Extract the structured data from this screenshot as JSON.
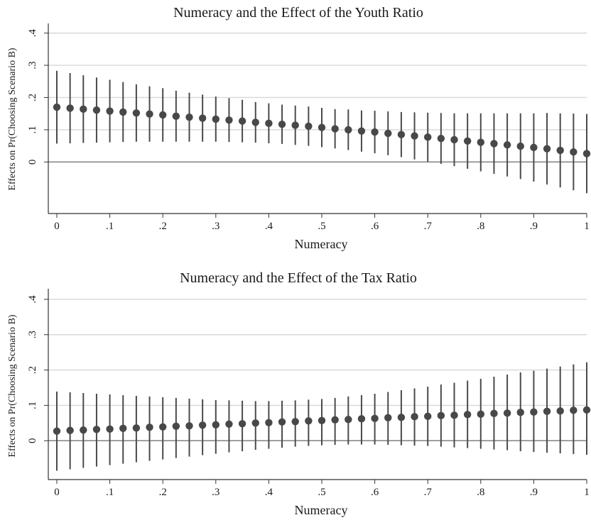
{
  "chart_data": [
    {
      "type": "scatter",
      "title": "Numeracy and the Effect of the Youth Ratio",
      "xlabel": "Numeracy",
      "ylabel": "Effects on Pr(Choosing Scenario B)",
      "xlim": [
        0,
        1
      ],
      "ylim": [
        -0.16,
        0.43
      ],
      "x_ticks": [
        "0",
        ".1",
        ".2",
        ".3",
        ".4",
        ".5",
        ".6",
        ".7",
        ".8",
        ".9",
        "1"
      ],
      "y_ticks": [
        ".4",
        ".3",
        ".2",
        ".1",
        "0"
      ],
      "y_tick_values": [
        0.4,
        0.3,
        0.2,
        0.1,
        0
      ],
      "grid": true,
      "reference_line": 0,
      "legend": "none",
      "x": [
        0,
        0.025,
        0.05,
        0.075,
        0.1,
        0.125,
        0.15,
        0.175,
        0.2,
        0.225,
        0.25,
        0.275,
        0.3,
        0.325,
        0.35,
        0.375,
        0.4,
        0.425,
        0.45,
        0.475,
        0.5,
        0.525,
        0.55,
        0.575,
        0.6,
        0.625,
        0.65,
        0.675,
        0.7,
        0.725,
        0.75,
        0.775,
        0.8,
        0.825,
        0.85,
        0.875,
        0.9,
        0.925,
        0.95,
        0.975,
        1.0
      ],
      "y": [
        0.17,
        0.167,
        0.164,
        0.161,
        0.158,
        0.155,
        0.152,
        0.149,
        0.146,
        0.142,
        0.139,
        0.136,
        0.133,
        0.13,
        0.127,
        0.123,
        0.12,
        0.117,
        0.114,
        0.111,
        0.107,
        0.103,
        0.1,
        0.096,
        0.093,
        0.089,
        0.085,
        0.081,
        0.077,
        0.073,
        0.069,
        0.065,
        0.061,
        0.057,
        0.053,
        0.049,
        0.045,
        0.041,
        0.036,
        0.031,
        0.026
      ],
      "ci_low": [
        0.057,
        0.058,
        0.059,
        0.06,
        0.061,
        0.062,
        0.063,
        0.063,
        0.063,
        0.063,
        0.063,
        0.063,
        0.063,
        0.062,
        0.061,
        0.06,
        0.058,
        0.056,
        0.053,
        0.05,
        0.046,
        0.042,
        0.037,
        0.032,
        0.027,
        0.021,
        0.015,
        0.008,
        0.001,
        -0.006,
        -0.013,
        -0.021,
        -0.029,
        -0.037,
        -0.045,
        -0.053,
        -0.061,
        -0.07,
        -0.079,
        -0.088,
        -0.097
      ],
      "ci_high": [
        0.283,
        0.276,
        0.269,
        0.262,
        0.255,
        0.248,
        0.241,
        0.235,
        0.229,
        0.221,
        0.215,
        0.209,
        0.203,
        0.198,
        0.193,
        0.186,
        0.182,
        0.178,
        0.175,
        0.172,
        0.168,
        0.164,
        0.163,
        0.16,
        0.159,
        0.157,
        0.155,
        0.154,
        0.153,
        0.152,
        0.151,
        0.151,
        0.151,
        0.151,
        0.151,
        0.151,
        0.151,
        0.152,
        0.151,
        0.15,
        0.149
      ]
    },
    {
      "type": "scatter",
      "title": "Numeracy and the Effect of the Tax Ratio",
      "xlabel": "Numeracy",
      "ylabel": "Effects on Pr(Choosing Scenario B)",
      "xlim": [
        0,
        1
      ],
      "ylim": [
        -0.11,
        0.43
      ],
      "x_ticks": [
        "0",
        ".1",
        ".2",
        ".3",
        ".4",
        ".5",
        ".6",
        ".7",
        ".8",
        ".9",
        "1"
      ],
      "y_ticks": [
        ".4",
        ".3",
        ".2",
        ".1",
        "0"
      ],
      "y_tick_values": [
        0.4,
        0.3,
        0.2,
        0.1,
        0
      ],
      "grid": true,
      "reference_line": 0,
      "legend": "none",
      "x": [
        0,
        0.025,
        0.05,
        0.075,
        0.1,
        0.125,
        0.15,
        0.175,
        0.2,
        0.225,
        0.25,
        0.275,
        0.3,
        0.325,
        0.35,
        0.375,
        0.4,
        0.425,
        0.45,
        0.475,
        0.5,
        0.525,
        0.55,
        0.575,
        0.6,
        0.625,
        0.65,
        0.675,
        0.7,
        0.725,
        0.75,
        0.775,
        0.8,
        0.825,
        0.85,
        0.875,
        0.9,
        0.925,
        0.95,
        0.975,
        1.0
      ],
      "y": [
        0.027,
        0.029,
        0.03,
        0.032,
        0.033,
        0.035,
        0.036,
        0.038,
        0.039,
        0.041,
        0.042,
        0.044,
        0.045,
        0.047,
        0.048,
        0.05,
        0.051,
        0.053,
        0.054,
        0.056,
        0.057,
        0.059,
        0.06,
        0.062,
        0.063,
        0.065,
        0.066,
        0.068,
        0.069,
        0.071,
        0.072,
        0.074,
        0.075,
        0.077,
        0.078,
        0.08,
        0.081,
        0.083,
        0.084,
        0.086,
        0.087
      ],
      "ci_low": [
        -0.085,
        -0.081,
        -0.077,
        -0.073,
        -0.069,
        -0.065,
        -0.061,
        -0.057,
        -0.053,
        -0.049,
        -0.045,
        -0.041,
        -0.037,
        -0.033,
        -0.03,
        -0.026,
        -0.023,
        -0.02,
        -0.017,
        -0.015,
        -0.013,
        -0.012,
        -0.011,
        -0.011,
        -0.011,
        -0.012,
        -0.013,
        -0.014,
        -0.015,
        -0.017,
        -0.019,
        -0.021,
        -0.023,
        -0.025,
        -0.027,
        -0.03,
        -0.032,
        -0.034,
        -0.036,
        -0.038,
        -0.04
      ],
      "ci_high": [
        0.139,
        0.137,
        0.135,
        0.133,
        0.131,
        0.129,
        0.127,
        0.125,
        0.123,
        0.121,
        0.119,
        0.117,
        0.115,
        0.114,
        0.113,
        0.112,
        0.112,
        0.113,
        0.114,
        0.116,
        0.118,
        0.121,
        0.125,
        0.129,
        0.133,
        0.138,
        0.143,
        0.148,
        0.153,
        0.159,
        0.164,
        0.17,
        0.175,
        0.181,
        0.187,
        0.193,
        0.198,
        0.204,
        0.21,
        0.216,
        0.222
      ]
    }
  ]
}
